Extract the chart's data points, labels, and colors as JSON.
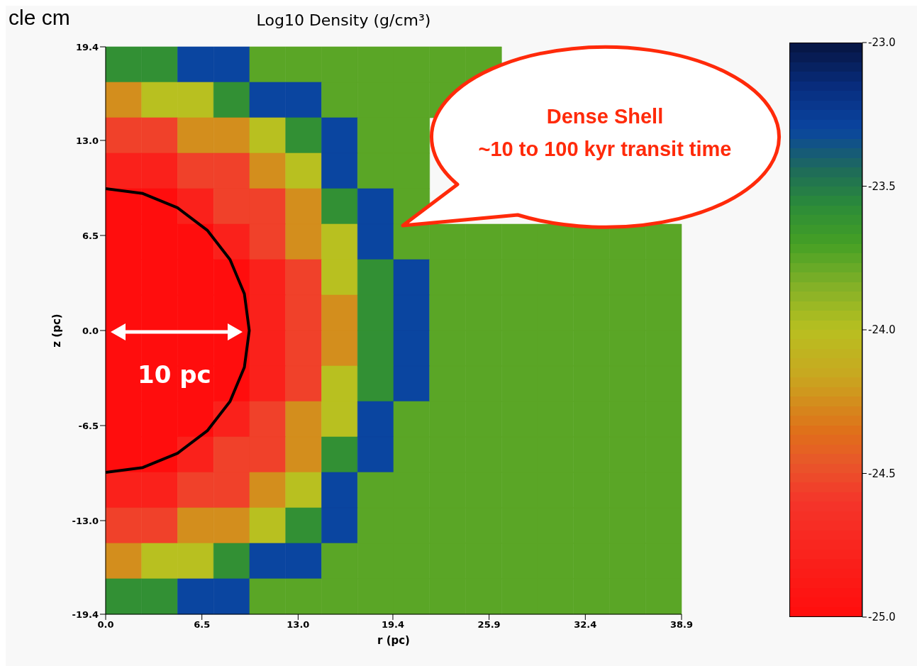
{
  "chart_data": {
    "type": "heatmap",
    "title": "Log10 Density (g/cm³)",
    "xlabel": "r (pc)",
    "ylabel": "z (pc)",
    "annotations": [
      "cle cm",
      "Dense Shell",
      "~10 to 100 kyr transit time",
      "10 pc"
    ],
    "xlim": [
      0,
      38.9
    ],
    "xticks": [
      {
        "value": 0,
        "label": "0.0"
      },
      6.5,
      {
        "value": 13,
        "label": "13.0"
      },
      19.4,
      25.9,
      32.4,
      38.9
    ],
    "ylim": [
      -19.4,
      19.4
    ],
    "yticks": [
      -19.4,
      {
        "value": -13,
        "label": "-13.0"
      },
      -6.5,
      {
        "value": 0,
        "label": "0.0"
      },
      6.5,
      {
        "value": 13,
        "label": "13.0"
      },
      19.4
    ],
    "clim": [
      -25,
      -23
    ],
    "cticks": [
      {
        "value": -25,
        "label": "-25.0"
      },
      -24.5,
      {
        "value": -24,
        "label": "-24.0"
      },
      -23.5,
      {
        "value": -23,
        "label": "-23.0"
      }
    ],
    "cells": [
      [
        -23.6,
        -23.6,
        -23.3,
        -23.3,
        -23.75,
        -23.75,
        -23.75,
        -23.75,
        -23.75,
        -23.75,
        -23.75,
        null,
        null,
        null,
        null,
        null
      ],
      [
        -24.25,
        -24.0,
        -24.0,
        -23.6,
        -23.3,
        -23.3,
        -23.75,
        -23.75,
        -23.75,
        -23.75,
        null,
        null,
        null,
        null,
        null,
        null
      ],
      [
        -24.55,
        -24.55,
        -24.25,
        -24.25,
        -24.0,
        -23.6,
        -23.3,
        -23.75,
        -23.75,
        null,
        null,
        null,
        null,
        null,
        null,
        null
      ],
      [
        -24.8,
        -24.8,
        -24.55,
        -24.55,
        -24.25,
        -24.0,
        -23.3,
        -23.75,
        -23.75,
        null,
        null,
        null,
        null,
        null,
        null,
        null
      ],
      [
        -25.0,
        -25.0,
        -24.8,
        -24.55,
        -24.55,
        -24.25,
        -23.6,
        -23.3,
        -23.75,
        null,
        null,
        null,
        null,
        null,
        null,
        null
      ],
      [
        -25.0,
        -25.0,
        -25.0,
        -24.8,
        -24.55,
        -24.25,
        -24.0,
        -23.3,
        -23.75,
        -23.75,
        -23.75,
        -23.75,
        -23.75,
        -23.75,
        -23.75,
        -23.75
      ],
      [
        -25.0,
        -25.0,
        -25.0,
        -25.0,
        -24.8,
        -24.55,
        -24.0,
        -23.6,
        -23.3,
        -23.75,
        -23.75,
        -23.75,
        -23.75,
        -23.75,
        -23.75,
        -23.75
      ],
      [
        -25.0,
        -25.0,
        -25.0,
        -25.0,
        -24.8,
        -24.55,
        -24.25,
        -23.6,
        -23.3,
        -23.75,
        -23.75,
        -23.75,
        -23.75,
        -23.75,
        -23.75,
        -23.75
      ],
      [
        -25.0,
        -25.0,
        -25.0,
        -25.0,
        -24.8,
        -24.55,
        -24.25,
        -23.6,
        -23.3,
        -23.75,
        -23.75,
        -23.75,
        -23.75,
        -23.75,
        -23.75,
        -23.75
      ],
      [
        -25.0,
        -25.0,
        -25.0,
        -25.0,
        -24.8,
        -24.55,
        -24.0,
        -23.6,
        -23.3,
        -23.75,
        -23.75,
        -23.75,
        -23.75,
        -23.75,
        -23.75,
        -23.75
      ],
      [
        -25.0,
        -25.0,
        -25.0,
        -24.8,
        -24.55,
        -24.25,
        -24.0,
        -23.3,
        -23.75,
        -23.75,
        -23.75,
        -23.75,
        -23.75,
        -23.75,
        -23.75,
        -23.75
      ],
      [
        -25.0,
        -25.0,
        -24.8,
        -24.55,
        -24.55,
        -24.25,
        -23.6,
        -23.3,
        -23.75,
        -23.75,
        -23.75,
        -23.75,
        -23.75,
        -23.75,
        -23.75,
        -23.75
      ],
      [
        -24.8,
        -24.8,
        -24.55,
        -24.55,
        -24.25,
        -24.0,
        -23.3,
        -23.75,
        -23.75,
        -23.75,
        -23.75,
        -23.75,
        -23.75,
        -23.75,
        -23.75,
        -23.75
      ],
      [
        -24.55,
        -24.55,
        -24.25,
        -24.25,
        -24.0,
        -23.6,
        -23.3,
        -23.75,
        -23.75,
        -23.75,
        -23.75,
        -23.75,
        -23.75,
        -23.75,
        -23.75,
        -23.75
      ],
      [
        -24.25,
        -24.0,
        -24.0,
        -23.6,
        -23.3,
        -23.3,
        -23.75,
        -23.75,
        -23.75,
        -23.75,
        -23.75,
        -23.75,
        -23.75,
        -23.75,
        -23.75,
        -23.75
      ],
      [
        -23.6,
        -23.6,
        -23.3,
        -23.3,
        -23.75,
        -23.75,
        -23.75,
        -23.75,
        -23.75,
        -23.75,
        -23.75,
        -23.75,
        -23.75,
        -23.75,
        -23.75,
        -23.75
      ]
    ],
    "series": [
      {
        "type": "line",
        "color": "#000000",
        "x": [
          0,
          2.51,
          4.85,
          6.86,
          8.4,
          9.37,
          9.7,
          9.37,
          8.4,
          6.86,
          4.85,
          2.51,
          0
        ],
        "values": [
          9.7,
          9.37,
          8.4,
          6.86,
          4.85,
          2.51,
          0,
          -2.51,
          -4.85,
          -6.86,
          -8.4,
          -9.37,
          -9.7
        ]
      }
    ]
  }
}
